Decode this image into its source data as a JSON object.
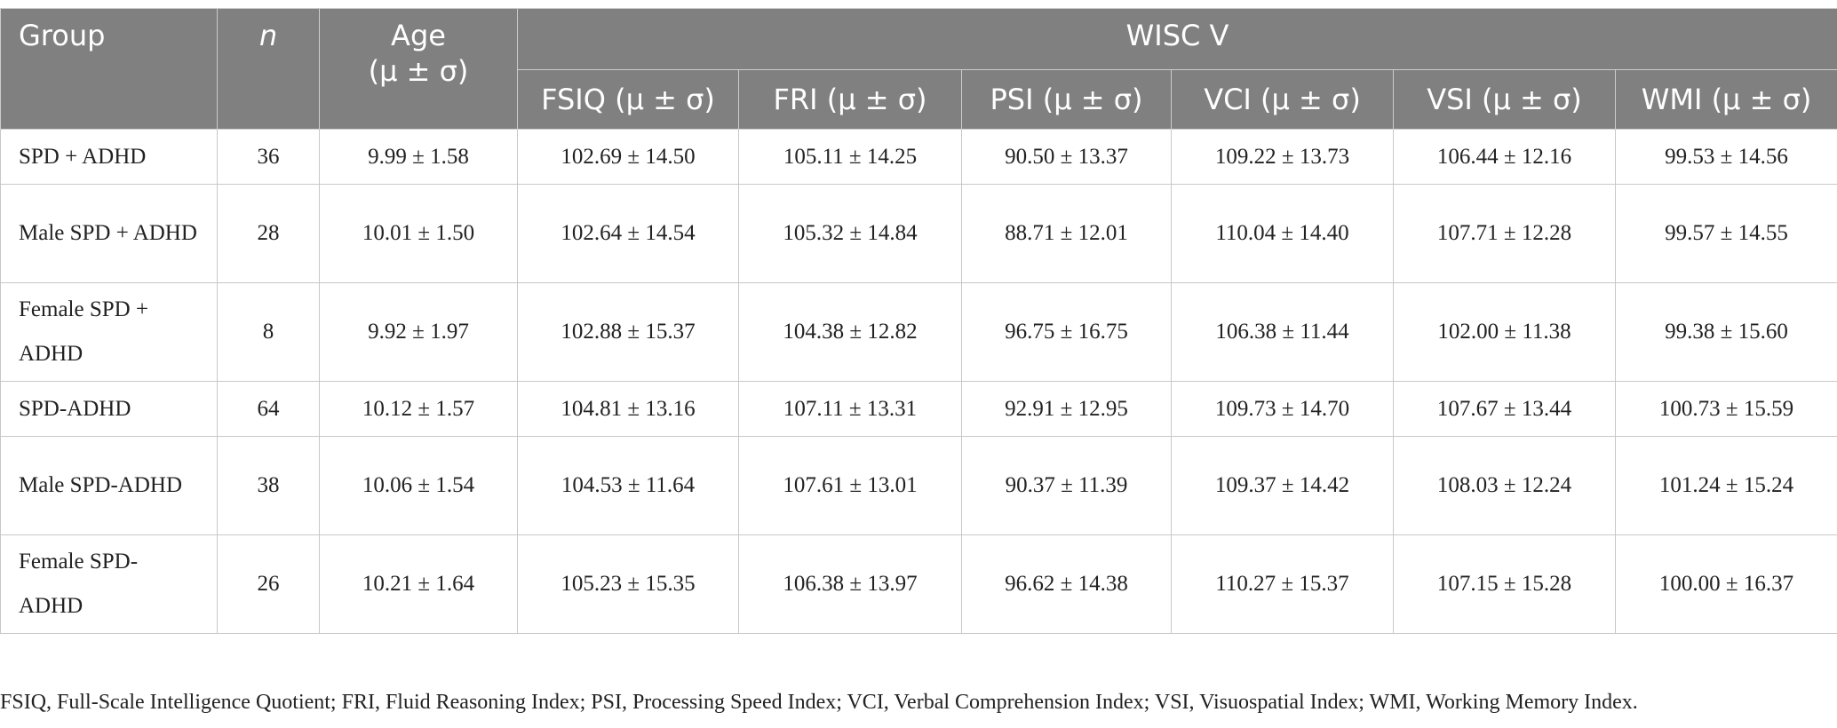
{
  "table": {
    "header": {
      "group": "Group",
      "n": "n",
      "age": {
        "label": "Age",
        "unit": "(μ ± σ)"
      },
      "span": "WISC V",
      "columns": [
        "FSIQ (μ ± σ)",
        "FRI (μ ± σ)",
        "PSI (μ ± σ)",
        "VCI (μ ± σ)",
        "VSI (μ ± σ)",
        "WMI (μ ± σ)"
      ]
    },
    "rows": [
      [
        "SPD + ADHD",
        "36",
        "9.99 ± 1.58",
        "102.69 ± 14.50",
        "105.11 ± 14.25",
        "90.50 ± 13.37",
        "109.22 ± 13.73",
        "106.44 ± 12.16",
        "99.53 ± 14.56"
      ],
      [
        "Male SPD + ADHD",
        "28",
        "10.01 ± 1.50",
        "102.64 ± 14.54",
        "105.32 ± 14.84",
        "88.71 ± 12.01",
        "110.04 ± 14.40",
        "107.71 ± 12.28",
        "99.57 ± 14.55"
      ],
      [
        "Female SPD + ADHD",
        "8",
        "9.92 ± 1.97",
        "102.88 ± 15.37",
        "104.38 ± 12.82",
        "96.75 ± 16.75",
        "106.38 ± 11.44",
        "102.00 ± 11.38",
        "99.38 ± 15.60"
      ],
      [
        "SPD-ADHD",
        "64",
        "10.12 ± 1.57",
        "104.81 ± 13.16",
        "107.11 ± 13.31",
        "92.91 ± 12.95",
        "109.73 ± 14.70",
        "107.67 ± 13.44",
        "100.73 ± 15.59"
      ],
      [
        "Male SPD-ADHD",
        "38",
        "10.06 ± 1.54",
        "104.53 ± 11.64",
        "107.61 ± 13.01",
        "90.37 ± 11.39",
        "109.37 ± 14.42",
        "108.03 ± 12.24",
        "101.24 ± 15.24"
      ],
      [
        "Female SPD-ADHD",
        "26",
        "10.21 ± 1.64",
        "105.23 ± 15.35",
        "106.38 ± 13.97",
        "96.62 ± 14.38",
        "110.27 ± 15.37",
        "107.15 ± 15.28",
        "100.00 ± 16.37"
      ]
    ]
  },
  "footnote": "FSIQ, Full-Scale Intelligence Quotient; FRI, Fluid Reasoning Index; PSI, Processing Speed Index; VCI, Verbal Comprehension Index; VSI, Visuospatial Index; WMI, Working Memory Index."
}
